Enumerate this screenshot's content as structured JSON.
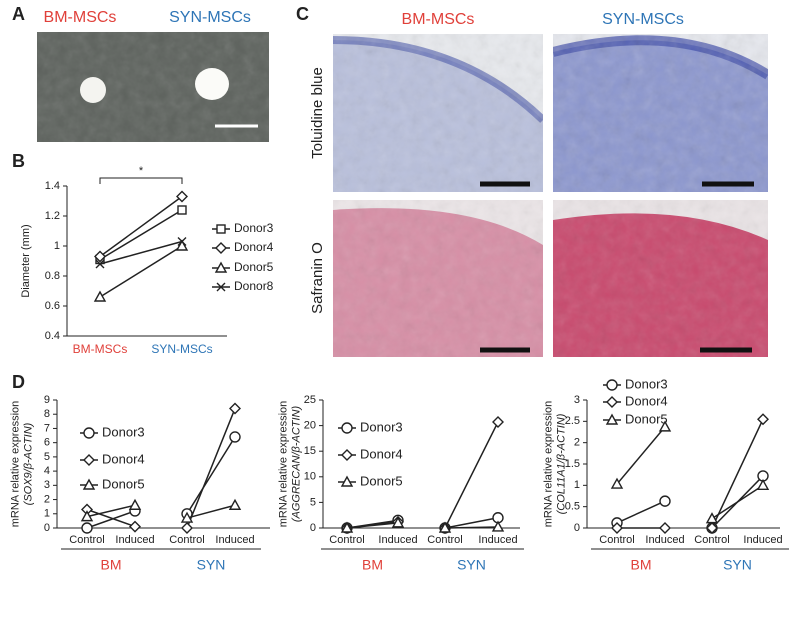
{
  "panels": {
    "A": {
      "label": "A",
      "left": "BM-MSCs",
      "right": "SYN-MSCs"
    },
    "B": {
      "label": "B"
    },
    "C": {
      "label": "C",
      "columns": [
        "BM-MSCs",
        "SYN-MSCs"
      ],
      "rows": [
        "Toluidine blue",
        "Safranin O"
      ]
    },
    "D": {
      "label": "D"
    }
  },
  "chart_data": [
    {
      "type": "line",
      "y_label": [
        "Diameter (mm)"
      ],
      "annotation": "*",
      "categories": [
        "BM-MSCs",
        "SYN-MSCs"
      ],
      "category_colors": [
        "#e0403a",
        "#2e75b6"
      ],
      "ylim": [
        0.4,
        1.4
      ],
      "yticks": [
        0.4,
        0.6,
        0.8,
        1,
        1.2,
        1.4
      ],
      "series": [
        {
          "name": "Donor3",
          "color": "#222222",
          "marker": "square",
          "values": [
            0.91,
            1.24
          ]
        },
        {
          "name": "Donor4",
          "color": "#222222",
          "marker": "diamond",
          "values": [
            0.93,
            1.33
          ]
        },
        {
          "name": "Donor5",
          "color": "#222222",
          "marker": "triangle",
          "values": [
            0.66,
            1.0
          ]
        },
        {
          "name": "Donor8",
          "color": "#222222",
          "marker": "x",
          "values": [
            0.88,
            1.03
          ]
        }
      ]
    },
    {
      "type": "line",
      "y_label": [
        "mRNA relative expression",
        "(SOX9/β-ACTIN)"
      ],
      "categories": [
        "Control",
        "Induced",
        "Control",
        "Induced"
      ],
      "groups": [
        {
          "name": "BM",
          "color": "#e0403a"
        },
        {
          "name": "SYN",
          "color": "#2e75b6"
        }
      ],
      "ylim": [
        0,
        9
      ],
      "yticks": [
        0,
        1,
        2,
        3,
        4,
        5,
        6,
        7,
        8,
        9
      ],
      "series": [
        {
          "name": "Donor3",
          "color": "#222222",
          "marker": "circle",
          "values": [
            0,
            1.2,
            1.0,
            6.4
          ]
        },
        {
          "name": "Donor4",
          "color": "#222222",
          "marker": "diamond",
          "values": [
            1.3,
            0.1,
            0,
            8.4
          ]
        },
        {
          "name": "Donor5",
          "color": "#222222",
          "marker": "triangle",
          "values": [
            0.8,
            1.6,
            0.7,
            1.6
          ]
        }
      ]
    },
    {
      "type": "line",
      "y_label": [
        "mRNA relative expression",
        "(AGGRECAN/β-ACTIN)"
      ],
      "categories": [
        "Control",
        "Induced",
        "Control",
        "Induced"
      ],
      "groups": [
        {
          "name": "BM",
          "color": "#e0403a"
        },
        {
          "name": "SYN",
          "color": "#2e75b6"
        }
      ],
      "ylim": [
        0,
        25
      ],
      "yticks": [
        0,
        5,
        10,
        15,
        20,
        25
      ],
      "series": [
        {
          "name": "Donor3",
          "color": "#222222",
          "marker": "circle",
          "values": [
            0,
            1.5,
            0,
            2.0
          ]
        },
        {
          "name": "Donor4",
          "color": "#222222",
          "marker": "diamond",
          "values": [
            0,
            1.2,
            0,
            20.7
          ]
        },
        {
          "name": "Donor5",
          "color": "#222222",
          "marker": "triangle",
          "values": [
            0,
            1.0,
            0,
            0.2
          ]
        }
      ]
    },
    {
      "type": "line",
      "y_label": [
        "mRNA relative expression",
        "(COL11A1/β-ACTIN)"
      ],
      "categories": [
        "Control",
        "Induced",
        "Control",
        "Induced"
      ],
      "groups": [
        {
          "name": "BM",
          "color": "#e0403a"
        },
        {
          "name": "SYN",
          "color": "#2e75b6"
        }
      ],
      "ylim": [
        0,
        3
      ],
      "yticks": [
        0,
        0.5,
        1,
        1.5,
        2,
        2.5,
        3
      ],
      "series": [
        {
          "name": "Donor3",
          "color": "#222222",
          "marker": "circle",
          "values": [
            0.12,
            0.63,
            0,
            1.22
          ]
        },
        {
          "name": "Donor4",
          "color": "#222222",
          "marker": "diamond",
          "values": [
            0,
            0,
            0,
            2.55
          ]
        },
        {
          "name": "Donor5",
          "color": "#222222",
          "marker": "triangle",
          "values": [
            1.03,
            2.37,
            0.22,
            1.0
          ]
        }
      ]
    }
  ]
}
